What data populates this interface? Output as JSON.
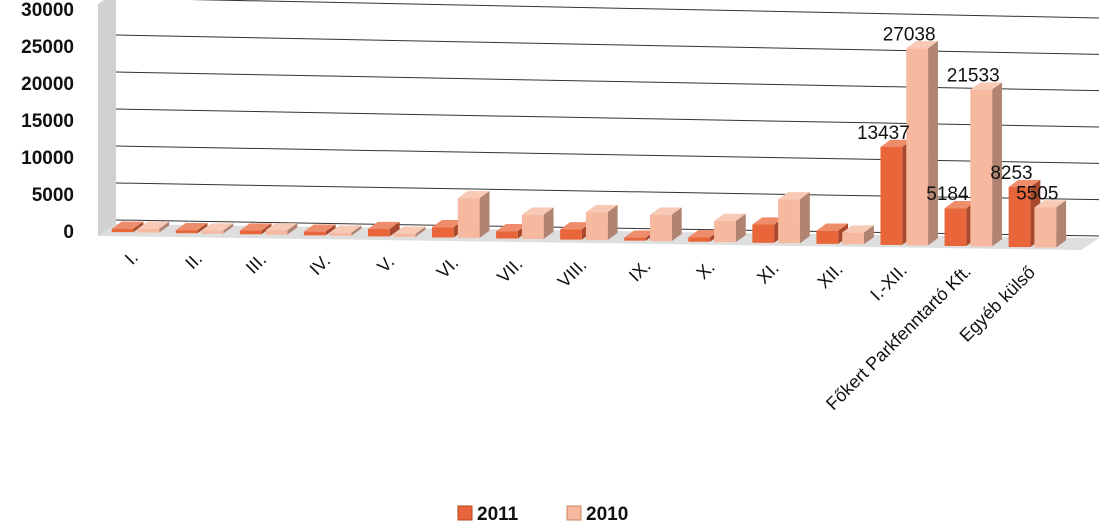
{
  "chart_data": {
    "type": "bar",
    "title": "",
    "xlabel": "",
    "ylabel": "",
    "categories": [
      "I.",
      "II.",
      "III.",
      "IV.",
      "V.",
      "VI.",
      "VII.",
      "VIII.",
      "IX.",
      "X.",
      "XI.",
      "XII.",
      "I.-XII.",
      "Főkert Parkfenntartó Kft.",
      "Egyéb külső"
    ],
    "series": [
      {
        "name": "2011",
        "values": [
          450,
          350,
          500,
          500,
          1000,
          1400,
          1000,
          1400,
          200,
          600,
          2500,
          1800,
          13437,
          5184,
          8253
        ]
      },
      {
        "name": "2010",
        "values": [
          500,
          400,
          600,
          300,
          400,
          5400,
          3300,
          3800,
          3600,
          2900,
          6000,
          1600,
          27038,
          21533,
          5505
        ]
      }
    ],
    "data_labels": [
      {
        "category": "I.-XII.",
        "series": "2011",
        "text": "13437"
      },
      {
        "category": "I.-XII.",
        "series": "2010",
        "text": "27038"
      },
      {
        "category": "Főkert Parkfenntartó Kft.",
        "series": "2011",
        "text": "5184"
      },
      {
        "category": "Főkert Parkfenntartó Kft.",
        "series": "2010",
        "text": "21533"
      },
      {
        "category": "Egyéb külső",
        "series": "2011",
        "text": "8253"
      },
      {
        "category": "Egyéb külső",
        "series": "2010",
        "text": "5505"
      }
    ],
    "y_ticks": [
      "0",
      "5000",
      "10000",
      "15000",
      "20000",
      "25000",
      "30000"
    ],
    "ylim": [
      0,
      30000
    ],
    "grid": true,
    "legend_position": "bottom",
    "colors": {
      "2011": "#e8663a",
      "2010": "#f6b89e",
      "floor": "#d6d6d6",
      "wall": "#bdbdbd"
    }
  }
}
